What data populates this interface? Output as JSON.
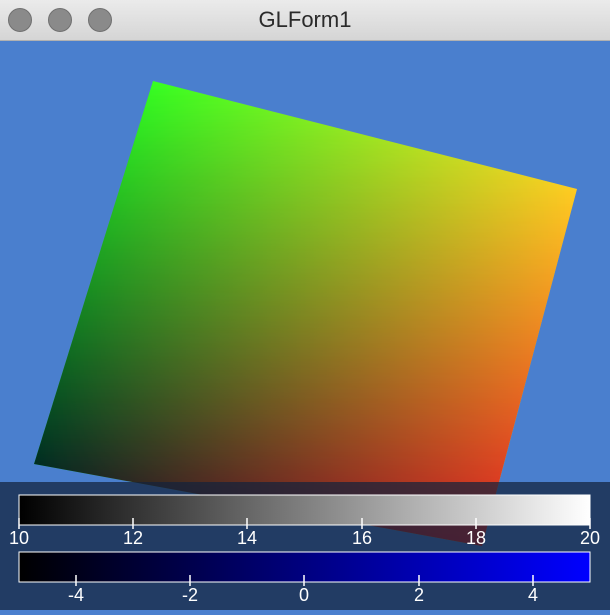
{
  "window": {
    "title": "GLForm1"
  },
  "colors": {
    "background": "#4a7fce",
    "quad_corners": {
      "top_left": "#00ff22",
      "top_right": "#ffff22",
      "bottom_right": "#ff2222",
      "bottom_left": "#000022"
    }
  },
  "legend": {
    "grayscale": {
      "labels": [
        "10",
        "12",
        "14",
        "16",
        "18",
        "20"
      ],
      "colors": [
        "#000000",
        "#ffffff"
      ]
    },
    "blue": {
      "labels": [
        "-4",
        "-2",
        "0",
        "2",
        "4"
      ],
      "colors": [
        "#000000",
        "#0000ff"
      ]
    }
  }
}
